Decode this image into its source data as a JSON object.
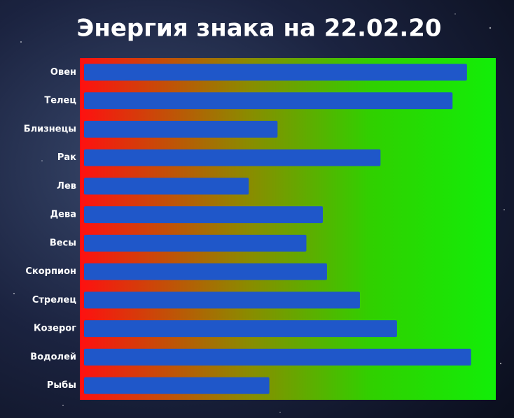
{
  "chart_data": {
    "type": "barh",
    "title": "Энергия знака на 22.02.20",
    "categories": [
      "Овен",
      "Телец",
      "Близнецы",
      "Рак",
      "Лев",
      "Дева",
      "Весы",
      "Скорпион",
      "Стрелец",
      "Козерог",
      "Водолей",
      "Рыбы"
    ],
    "values": [
      93,
      89.5,
      47,
      72,
      40,
      58,
      54,
      59,
      67,
      76,
      94,
      45
    ],
    "color": "#1f57c9",
    "xlim": [
      0,
      100
    ]
  }
}
